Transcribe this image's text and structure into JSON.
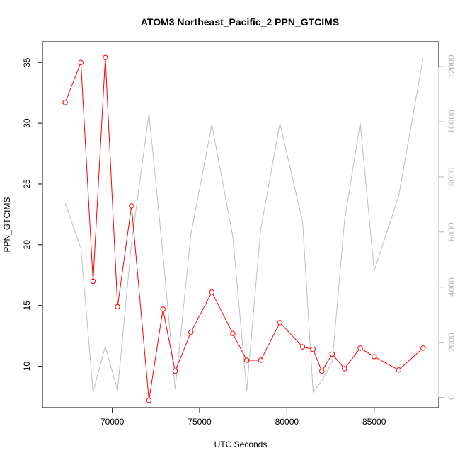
{
  "chart_data": {
    "type": "line",
    "title": "ATOM3 Northeast_Pacific_2 PPN_GTCIMS",
    "xlabel": "UTC Seconds",
    "ylabel": "PPN_GTCIMS",
    "xlim": [
      66000,
      88700
    ],
    "ylim": [
      6.6,
      36.7
    ],
    "y2lim": [
      -370,
      12900
    ],
    "x_ticks": [
      70000,
      75000,
      80000,
      85000
    ],
    "x_tick_labels": [
      "70000",
      "75000",
      "80000",
      "85000"
    ],
    "y_ticks": [
      10,
      15,
      20,
      25,
      30,
      35
    ],
    "y_tick_labels": [
      "10",
      "15",
      "20",
      "25",
      "30",
      "35"
    ],
    "y2_ticks": [
      0,
      2000,
      4000,
      6000,
      8000,
      10000,
      12000
    ],
    "y2_tick_labels": [
      "0",
      "2000",
      "4000",
      "6000",
      "8000",
      "10000",
      "12000"
    ],
    "grid": false,
    "colors": {
      "primary_series": "#ff0000",
      "secondary_series": "#bebebe",
      "right_axis": "#b3b3b3"
    },
    "series": [
      {
        "axis": "left",
        "marker": "open-circle",
        "x": [
          67300,
          68200,
          68900,
          69600,
          70300,
          71100,
          72100,
          72900,
          73600,
          74500,
          75700,
          76900,
          77700,
          78500,
          79600,
          80900,
          81500,
          82000,
          82600,
          83300,
          84200,
          85000,
          86400,
          87800
        ],
        "y": [
          31.7,
          35.0,
          17.0,
          35.4,
          14.9,
          23.2,
          7.2,
          14.7,
          9.6,
          12.8,
          16.1,
          12.7,
          10.5,
          10.5,
          13.6,
          11.6,
          11.4,
          9.6,
          11.0,
          9.8,
          11.5,
          10.8,
          9.7,
          11.5
        ]
      },
      {
        "axis": "right",
        "marker": "none",
        "x": [
          67300,
          68200,
          68900,
          69600,
          70300,
          71100,
          72100,
          72900,
          73600,
          74500,
          75700,
          76900,
          77700,
          78500,
          79600,
          80900,
          81500,
          82000,
          82600,
          83300,
          84200,
          85000,
          86400,
          87800
        ],
        "y": [
          7050,
          5400,
          200,
          1850,
          250,
          5600,
          10300,
          5200,
          300,
          5900,
          9900,
          5850,
          250,
          6100,
          9950,
          6350,
          200,
          600,
          1300,
          6400,
          9950,
          4600,
          7300,
          12300
        ]
      }
    ]
  }
}
